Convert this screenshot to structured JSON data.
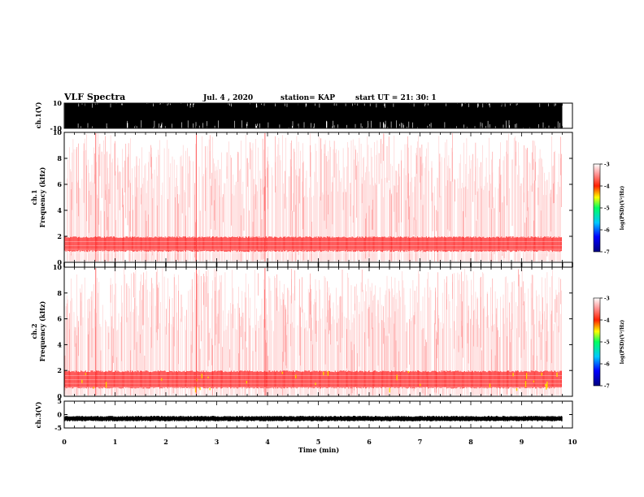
{
  "header": {
    "title": "VLF Spectra",
    "date": "Jul. 4 , 2020",
    "station": "station= KAP",
    "start_ut": "start UT = 21: 30: 1"
  },
  "colors": {
    "spectrogram_low": "#ffd0d0",
    "spectrogram_mid": "#ff2020",
    "spectrogram_high": "#ffd400",
    "colorbar": [
      "#000080",
      "#0000ff",
      "#00c8ff",
      "#00ff60",
      "#ffff00",
      "#ff2000",
      "#ffffff"
    ]
  },
  "chart_data": [
    {
      "type": "line",
      "name": "ch1-waveform",
      "ylabel": "ch.1(V)",
      "ylim": [
        -10,
        10
      ],
      "yticks": [
        {
          "v": 10,
          "label": "10"
        },
        {
          "v": -10,
          "label": "-10"
        }
      ],
      "xlim": [
        0,
        10
      ],
      "signal_extent_min": 9.8,
      "note_values": "saturated waveform spanning roughly -10 to 10 V"
    },
    {
      "type": "heatmap",
      "name": "ch1-spectrogram",
      "ylabel_lines": [
        "ch.1",
        "Frequency (kHz)"
      ],
      "ylim": [
        0,
        10
      ],
      "yticks": [
        {
          "v": 0,
          "label": "0"
        },
        {
          "v": 2,
          "label": "2"
        },
        {
          "v": 4,
          "label": "4"
        },
        {
          "v": 6,
          "label": "6"
        },
        {
          "v": 8,
          "label": "8"
        },
        {
          "v": 10,
          "label": "10"
        }
      ],
      "xlim": [
        0,
        10
      ],
      "colorbar": {
        "label": "log(PSD)(V²/Hz)",
        "range": [
          -7,
          -3
        ],
        "ticks": [
          {
            "v": -3,
            "label": "-3"
          },
          {
            "v": -4,
            "label": "-4"
          },
          {
            "v": -5,
            "label": "-5"
          },
          {
            "v": -6,
            "label": "-6"
          },
          {
            "v": -7,
            "label": "-7"
          }
        ]
      },
      "strong_band_khz": [
        0.8,
        2.0
      ],
      "yellow_spots": false
    },
    {
      "type": "heatmap",
      "name": "ch2-spectrogram",
      "ylabel_lines": [
        "ch.2",
        "Frequency (kHz)"
      ],
      "ylim": [
        0,
        10
      ],
      "yticks": [
        {
          "v": 0,
          "label": "0"
        },
        {
          "v": 2,
          "label": "2"
        },
        {
          "v": 4,
          "label": "4"
        },
        {
          "v": 6,
          "label": "6"
        },
        {
          "v": 8,
          "label": "8"
        },
        {
          "v": 10,
          "label": "10"
        }
      ],
      "xlim": [
        0,
        10
      ],
      "colorbar": {
        "label": "log(PSD)(V²/Hz)",
        "range": [
          -7,
          -3
        ],
        "ticks": [
          {
            "v": -3,
            "label": "-3"
          },
          {
            "v": -4,
            "label": "-4"
          },
          {
            "v": -5,
            "label": "-5"
          },
          {
            "v": -6,
            "label": "-6"
          },
          {
            "v": -7,
            "label": "-7"
          }
        ]
      },
      "strong_band_khz": [
        0.6,
        2.0
      ],
      "yellow_spots": true
    },
    {
      "type": "line",
      "name": "ch3-waveform",
      "ylabel": "ch.3(V)",
      "ylim": [
        -5,
        5
      ],
      "yticks": [
        {
          "v": 5,
          "label": "5"
        },
        {
          "v": 0,
          "label": "0"
        },
        {
          "v": -5,
          "label": "-5"
        }
      ],
      "xlim": [
        0,
        10
      ],
      "level_v": -1.5,
      "signal_extent_min": 9.8
    }
  ],
  "xaxis": {
    "label": "Time (min)",
    "ticks": [
      {
        "v": 0,
        "label": "0"
      },
      {
        "v": 1,
        "label": "1"
      },
      {
        "v": 2,
        "label": "2"
      },
      {
        "v": 3,
        "label": "3"
      },
      {
        "v": 4,
        "label": "4"
      },
      {
        "v": 5,
        "label": "5"
      },
      {
        "v": 6,
        "label": "6"
      },
      {
        "v": 7,
        "label": "7"
      },
      {
        "v": 8,
        "label": "8"
      },
      {
        "v": 9,
        "label": "9"
      },
      {
        "v": 10,
        "label": "10"
      }
    ]
  }
}
